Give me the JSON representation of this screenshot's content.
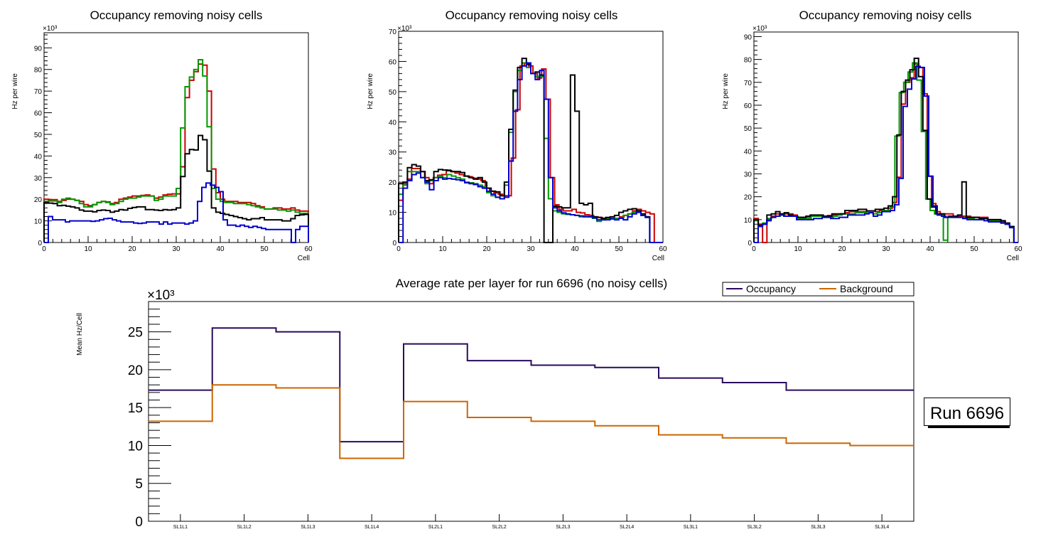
{
  "chart_data": [
    {
      "type": "line",
      "subtype": "step-histogram",
      "title": "Occupancy removing noisy cells",
      "xlabel": "Cell",
      "ylabel": "Hz per wire",
      "y_multiplier": "×10³",
      "xlim": [
        0,
        60
      ],
      "ylim": [
        0,
        97
      ],
      "xticks": [
        0,
        10,
        20,
        30,
        40,
        50,
        60
      ],
      "yticks": [
        0,
        10,
        20,
        30,
        40,
        50,
        60,
        70,
        80,
        90
      ],
      "series": [
        {
          "name": "red",
          "color": "#cc0000",
          "values": [
            20,
            19.8,
            19.8,
            19,
            19.5,
            20,
            20,
            19.5,
            19,
            17.5,
            17,
            17.5,
            18.5,
            19,
            18.8,
            18,
            18.5,
            20,
            20.5,
            21,
            21.5,
            21.5,
            21.8,
            22,
            21.5,
            20.5,
            21,
            22,
            22.3,
            22.5,
            22.5,
            35,
            67,
            75,
            79,
            82.5,
            82,
            70,
            34,
            23,
            20,
            19,
            19,
            19,
            18.5,
            18.5,
            18.5,
            18,
            17,
            16.5,
            15.5,
            15.5,
            16,
            16,
            15.5,
            15.5,
            16,
            15,
            14.5,
            14.5
          ]
        },
        {
          "name": "green",
          "color": "#009900",
          "values": [
            19,
            19.2,
            19.2,
            18.5,
            20,
            20.5,
            20,
            19.5,
            18,
            16.5,
            16.5,
            17.5,
            18.5,
            19,
            18.5,
            17.5,
            18,
            19,
            20,
            20.5,
            20.5,
            21,
            21.5,
            21.5,
            21.5,
            19.5,
            20,
            21.5,
            21.5,
            21.5,
            25,
            53,
            72,
            76.5,
            80,
            84.5,
            77,
            53.5,
            25,
            20,
            19,
            18.5,
            18.5,
            18,
            18,
            18,
            17.5,
            17,
            16.5,
            16,
            15.5,
            15.5,
            15.5,
            15,
            15,
            14.5,
            15,
            14,
            13.5,
            13.5
          ]
        },
        {
          "name": "black",
          "color": "#000000",
          "values": [
            18.5,
            18.2,
            18,
            17,
            17.2,
            16.8,
            16.5,
            16,
            15,
            14.5,
            14.5,
            14.2,
            14.8,
            15,
            14.8,
            14,
            14.5,
            15.2,
            15,
            15.8,
            16.2,
            16.5,
            16.5,
            15.2,
            15.2,
            15,
            14.8,
            15.2,
            15,
            15.2,
            16,
            30.5,
            41,
            43,
            42.8,
            49.5,
            47.5,
            33,
            16,
            14,
            13.5,
            13,
            12.5,
            12,
            11.5,
            11,
            10.5,
            11,
            11,
            11.5,
            10.5,
            10.5,
            10.5,
            10.5,
            10,
            10,
            11,
            12.5,
            12.8,
            13
          ]
        },
        {
          "name": "blue",
          "color": "#0000cc",
          "values": [
            0,
            12,
            10.5,
            10.5,
            10.5,
            9.5,
            10,
            10,
            10,
            10,
            10,
            9.8,
            10,
            10.5,
            11,
            11.2,
            10.5,
            10,
            9.5,
            9.5,
            9.5,
            9,
            8.8,
            9,
            9.5,
            9.5,
            9.5,
            8.5,
            9.5,
            8.5,
            9,
            9,
            9,
            8.5,
            9,
            10,
            19,
            25.5,
            27.5,
            26.5,
            25.5,
            23.5,
            10.5,
            8,
            8,
            7.5,
            8,
            7.5,
            7,
            7.5,
            7,
            6.5,
            6,
            6,
            6,
            6,
            6,
            6,
            0,
            6,
            7.5,
            7.5
          ]
        }
      ]
    },
    {
      "type": "line",
      "subtype": "step-histogram",
      "title": "Occupancy removing noisy cells",
      "xlabel": "Cell",
      "ylabel": "Hz per wire",
      "y_multiplier": "×10³",
      "xlim": [
        0,
        60
      ],
      "ylim": [
        0,
        70
      ],
      "xticks": [
        0,
        10,
        20,
        30,
        40,
        50,
        60
      ],
      "yticks": [
        0,
        10,
        20,
        30,
        40,
        50,
        60,
        70
      ],
      "series": [
        {
          "name": "red",
          "color": "#cc0000",
          "values": [
            14,
            19.5,
            21,
            24.5,
            24.5,
            23.5,
            21.5,
            19.5,
            21.5,
            22.3,
            22.5,
            24,
            23.5,
            23,
            22.5,
            22,
            21.8,
            21.3,
            21,
            20.5,
            18,
            17,
            16.5,
            16,
            15.5,
            15.5,
            28,
            44,
            58.5,
            59.5,
            58.5,
            56,
            54.5,
            57.5,
            47.5,
            21.5,
            12.5,
            11,
            10.5,
            10.5,
            11,
            10,
            9.8,
            9.2,
            9,
            8.5,
            8.3,
            8,
            8,
            8,
            8,
            8.5,
            9,
            9.5,
            10.5,
            11,
            10.5,
            10,
            9.5,
            0,
            0
          ]
        },
        {
          "name": "green",
          "color": "#009900",
          "values": [
            16,
            19,
            23.5,
            23.5,
            23.5,
            21.5,
            19.5,
            20.5,
            21.5,
            22,
            21.5,
            22.5,
            22,
            21.5,
            21,
            20,
            19.8,
            19.5,
            19,
            18.5,
            16.5,
            15.5,
            15,
            14.5,
            19,
            36.5,
            50,
            57,
            59.5,
            58,
            56,
            55,
            55,
            34.5,
            14.5,
            10.5,
            10,
            9.5,
            9.3,
            9.2,
            9,
            8.5,
            8.7,
            8.5,
            8,
            7,
            7.5,
            7.8,
            8,
            8,
            8,
            9,
            9.5,
            10,
            10.5,
            9,
            8.5,
            0,
            0,
            0
          ]
        },
        {
          "name": "black",
          "color": "#000000",
          "values": [
            19.5,
            20,
            24.8,
            25.8,
            25.3,
            23.5,
            20.5,
            20.8,
            23.5,
            24.2,
            24,
            23.8,
            23.5,
            23.5,
            23.2,
            22,
            21.5,
            21,
            21.5,
            20,
            18,
            17,
            16.8,
            15.5,
            20,
            37.5,
            50.5,
            58,
            61,
            59,
            56,
            56.5,
            55.5,
            0,
            0,
            12,
            11.8,
            11.5,
            11.5,
            55.5,
            43.5,
            13,
            12.5,
            13,
            8.5,
            8.3,
            8,
            8.3,
            8.5,
            9,
            10,
            10.5,
            11,
            11.2,
            10.5,
            9.5,
            8.5,
            0,
            0,
            0
          ]
        },
        {
          "name": "blue",
          "color": "#0000cc",
          "values": [
            0,
            18,
            20.5,
            22.5,
            23,
            21.5,
            20,
            17.5,
            20.5,
            21.5,
            21,
            21.2,
            21,
            20.8,
            20.5,
            19.8,
            19.5,
            19.2,
            18.5,
            18,
            17,
            16,
            15,
            14.5,
            15,
            27,
            43.5,
            54,
            58.5,
            59.5,
            56,
            54,
            57,
            47.5,
            21.5,
            11.5,
            10.5,
            9.8,
            9.5,
            9.2,
            9,
            8.8,
            8.5,
            8.5,
            8.2,
            7.5,
            7.5,
            7.5,
            7.8,
            7.5,
            8,
            7.5,
            8.5,
            9.5,
            10,
            9,
            8.3,
            0,
            0,
            0
          ]
        }
      ]
    },
    {
      "type": "line",
      "subtype": "step-histogram",
      "title": "Occupancy removing noisy cells",
      "xlabel": "Cell",
      "ylabel": "Hz per wire",
      "y_multiplier": "×10³",
      "xlim": [
        0,
        60
      ],
      "ylim": [
        0,
        92
      ],
      "xticks": [
        0,
        10,
        20,
        30,
        40,
        50,
        60
      ],
      "yticks": [
        0,
        10,
        20,
        30,
        40,
        50,
        60,
        70,
        80,
        90
      ],
      "series": [
        {
          "name": "red",
          "color": "#cc0000",
          "values": [
            10.5,
            8,
            0,
            10,
            11.5,
            12.5,
            12.5,
            12.5,
            12.5,
            12,
            11,
            11,
            11.2,
            11.5,
            11.8,
            11.5,
            11.5,
            11.8,
            12,
            12.3,
            12.5,
            13,
            13.5,
            13.5,
            13.5,
            13.5,
            13.8,
            13.8,
            13.5,
            14,
            14,
            15,
            17.5,
            28.5,
            60.5,
            70,
            72,
            78,
            76.5,
            65,
            29,
            17,
            13.5,
            12.5,
            12.5,
            12.5,
            11.5,
            11.5,
            11.5,
            11.5,
            11,
            11,
            11,
            11,
            10,
            10,
            10,
            9,
            8,
            7,
            0
          ]
        },
        {
          "name": "green",
          "color": "#009900",
          "values": [
            9.5,
            7.5,
            8.5,
            10.5,
            11,
            11.5,
            12,
            11.5,
            11.5,
            11.5,
            10.5,
            10.5,
            10.5,
            11.5,
            11.5,
            11.5,
            11,
            11,
            11.5,
            12,
            12.5,
            12.5,
            12.5,
            13,
            13,
            13,
            13,
            12.5,
            13,
            14,
            14,
            15.5,
            46.5,
            65.5,
            70,
            74.5,
            78.5,
            71,
            48.5,
            19,
            14,
            12.5,
            12,
            1,
            11.5,
            11,
            11,
            11,
            10.5,
            10.5,
            10,
            10,
            10.5,
            9.5,
            9.5,
            9.5,
            8.5,
            8,
            7,
            0
          ]
        },
        {
          "name": "black",
          "color": "#000000",
          "values": [
            10,
            7.5,
            8,
            12,
            12.5,
            13.5,
            12.5,
            13,
            12,
            11.5,
            11,
            11,
            11.5,
            12,
            12,
            12,
            11.5,
            11.5,
            12.5,
            12.5,
            12.5,
            14,
            14,
            14,
            14.5,
            14.5,
            13.8,
            13.8,
            14.5,
            14.5,
            15,
            16,
            20,
            47,
            66,
            71,
            75.5,
            80.5,
            72.5,
            49,
            19,
            15.5,
            12.5,
            12.5,
            11,
            11.5,
            11.5,
            12,
            26.5,
            11,
            11,
            11,
            10.5,
            10.5,
            10,
            10,
            10,
            9.5,
            8.5,
            7,
            0
          ]
        },
        {
          "name": "blue",
          "color": "#0000cc",
          "values": [
            0,
            7,
            8,
            9.5,
            11,
            11.5,
            12,
            11.5,
            11.5,
            11.5,
            10,
            10,
            10,
            10,
            10.5,
            10.5,
            11,
            11,
            10.5,
            10.5,
            11,
            11,
            12,
            12,
            12,
            12,
            12.5,
            13,
            11.5,
            12,
            13.5,
            13.5,
            14,
            16.5,
            28,
            59.5,
            67,
            71.5,
            77,
            76.5,
            64,
            29,
            16,
            12,
            11.5,
            11,
            11,
            11,
            11,
            10.5,
            10,
            10,
            10,
            10,
            9.5,
            9,
            9,
            9,
            8.5,
            8,
            6.5,
            0
          ]
        }
      ]
    },
    {
      "type": "line",
      "subtype": "step-histogram",
      "title": "Average rate per layer for run 6696 (no noisy cells)",
      "xlabel": "",
      "ylabel": "Mean Hz/Cell",
      "y_multiplier": "×10³",
      "ylim": [
        0,
        29
      ],
      "yticks": [
        0,
        5,
        10,
        15,
        20,
        25
      ],
      "categories": [
        "SL1L1",
        "SL1L2",
        "SL1L3",
        "SL1L4",
        "SL2L1",
        "SL2L2",
        "SL2L3",
        "SL2L4",
        "SL3L1",
        "SL3L2",
        "SL3L3",
        "SL3L4"
      ],
      "legend": {
        "placement": "top-right",
        "entries": [
          "Occupancy",
          "Background"
        ]
      },
      "annotation": "Run 6696",
      "series": [
        {
          "name": "Occupancy",
          "color": "#2a0a5e",
          "values": [
            17.3,
            25.5,
            25.0,
            10.5,
            23.4,
            21.2,
            20.6,
            20.3,
            18.9,
            18.3,
            17.3,
            17.3
          ]
        },
        {
          "name": "Background",
          "color": "#cc6600",
          "values": [
            13.2,
            18.0,
            17.6,
            8.3,
            15.8,
            13.7,
            13.2,
            12.6,
            11.4,
            11.0,
            10.3,
            10.0
          ]
        }
      ]
    }
  ]
}
